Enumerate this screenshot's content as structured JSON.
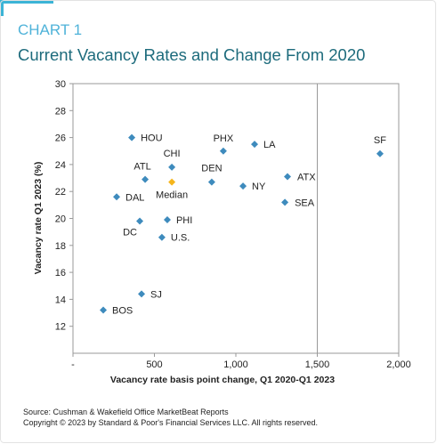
{
  "chart_data": {
    "type": "scatter",
    "kicker": "CHART 1",
    "title": "Current Vacancy Rates and Change From 2020",
    "x_label": "Vacancy rate basis point change, Q1 2020-Q1 2023",
    "y_label": "Vacancy rate Q1 2023 (%)",
    "points": [
      "HOU",
      "PHX",
      "LA",
      "SF",
      "CHI",
      "ATL",
      "Median",
      "DEN",
      "NY",
      "ATX",
      "SEA",
      "DAL",
      "DC",
      "PHI",
      "U.S.",
      "SJ",
      "BOS"
    ],
    "x": [
      361,
      923,
      1115,
      1885,
      607,
      443,
      607,
      852,
      1044,
      1317,
      1301,
      268,
      410,
      579,
      546,
      421,
      186
    ],
    "y": [
      26.0,
      25.0,
      25.5,
      24.8,
      23.8,
      22.9,
      22.7,
      22.7,
      22.4,
      23.1,
      21.2,
      21.6,
      19.8,
      19.9,
      18.6,
      14.4,
      13.2
    ],
    "colors": [
      "#3e8bbd",
      "#3e8bbd",
      "#3e8bbd",
      "#3e8bbd",
      "#3e8bbd",
      "#3e8bbd",
      "#f5b51c",
      "#3e8bbd",
      "#3e8bbd",
      "#3e8bbd",
      "#3e8bbd",
      "#3e8bbd",
      "#3e8bbd",
      "#3e8bbd",
      "#3e8bbd",
      "#3e8bbd",
      "#3e8bbd"
    ],
    "xlim": [
      0,
      2000
    ],
    "ylim": [
      10,
      30
    ],
    "xticks": [
      {
        "value": 0,
        "label": "-"
      },
      500,
      {
        "value": 1000,
        "label": "1,000"
      },
      {
        "value": 1500,
        "label": "1,500"
      },
      {
        "value": 2000,
        "label": "2,000"
      }
    ],
    "yticks": [
      12,
      14,
      16,
      18,
      20,
      22,
      24,
      26,
      28,
      30
    ],
    "reference_x": 1500,
    "source": "Source: Cushman & Wakefield Office MarketBeat Reports",
    "copyright": "Copyright © 2023 by Standard & Poor's Financial Services LLC. All rights reserved."
  }
}
